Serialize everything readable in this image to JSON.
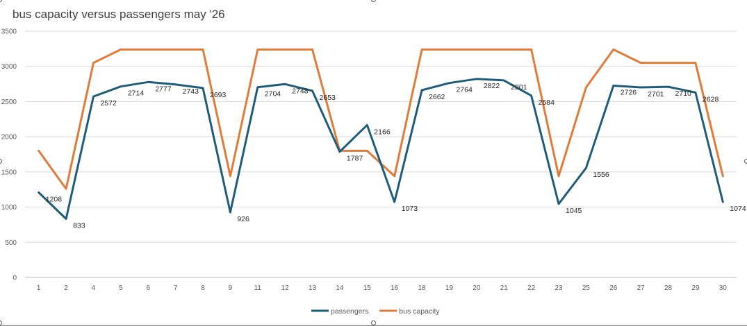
{
  "chart_data": {
    "type": "line",
    "title": "bus capacity versus passengers may '26",
    "xlabel": "",
    "ylabel": "",
    "ylim": [
      0,
      3500
    ],
    "yticks": [
      0,
      500,
      1000,
      1500,
      2000,
      2500,
      3000,
      3500
    ],
    "grid": true,
    "legend_position": "bottom",
    "categories": [
      "1",
      "2",
      "4",
      "5",
      "6",
      "7",
      "8",
      "9",
      "11",
      "12",
      "13",
      "14",
      "15",
      "16",
      "18",
      "19",
      "20",
      "21",
      "22",
      "23",
      "25",
      "26",
      "27",
      "28",
      "29",
      "30"
    ],
    "series": [
      {
        "name": "passengers",
        "color": "#1f5c7a",
        "show_labels": true,
        "values": [
          1208,
          833,
          2572,
          2714,
          2777,
          2743,
          2693,
          926,
          2704,
          2748,
          2653,
          1787,
          2166,
          1073,
          2662,
          2764,
          2822,
          2801,
          2584,
          1045,
          1556,
          2726,
          2701,
          2710,
          2628,
          1074
        ]
      },
      {
        "name": "bus capacity",
        "color": "#e07b39",
        "show_labels": false,
        "values": [
          1800,
          1260,
          3050,
          3240,
          3240,
          3240,
          3240,
          1440,
          3240,
          3240,
          3240,
          1800,
          1800,
          1440,
          3240,
          3240,
          3240,
          3240,
          3240,
          1440,
          2700,
          3240,
          3050,
          3050,
          3050,
          1440
        ]
      }
    ]
  }
}
